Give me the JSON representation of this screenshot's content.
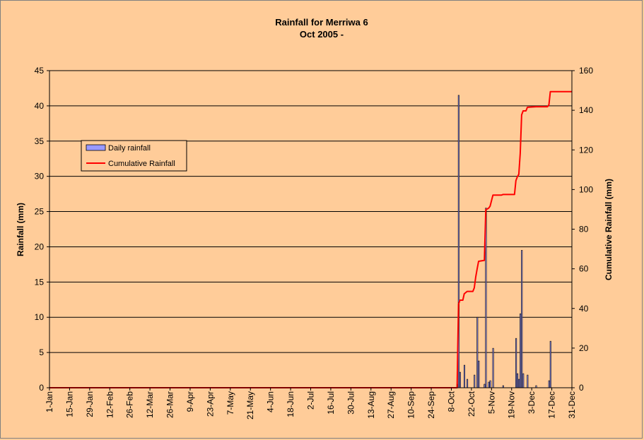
{
  "chart_data": {
    "type": "bar+line",
    "title": "Rainfall for Merriwa 6",
    "subtitle": "Oct 2005 -",
    "ylabel": "Rainfall (mm)",
    "y2label": "Cumulative Rainfall (mm)",
    "ylim": [
      0,
      45
    ],
    "y2lim": [
      0,
      160
    ],
    "yticks": [
      0,
      5,
      10,
      15,
      20,
      25,
      30,
      35,
      40,
      45
    ],
    "y2ticks": [
      0,
      20,
      40,
      60,
      80,
      100,
      120,
      140,
      160
    ],
    "x_date_range": [
      "1-Jan",
      "31-Dec"
    ],
    "xtick_labels": [
      "1-Jan",
      "15-Jan",
      "29-Jan",
      "12-Feb",
      "26-Feb",
      "12-Mar",
      "26-Mar",
      "9-Apr",
      "23-Apr",
      "7-May",
      "21-May",
      "4-Jun",
      "18-Jun",
      "2-Jul",
      "16-Jul",
      "30-Jul",
      "13-Aug",
      "27-Aug",
      "10-Sep",
      "24-Sep",
      "8-Oct",
      "22-Oct",
      "5-Nov",
      "19-Nov",
      "3-Dec",
      "17-Dec",
      "31-Dec"
    ],
    "grid": true,
    "legend_position": "left, upper-middle",
    "series": [
      {
        "name": "Daily rainfall",
        "type": "bar",
        "color": "#9999FF",
        "points": [
          [
            "12-Oct",
            0.5
          ],
          [
            "13-Oct",
            41.5
          ],
          [
            "14-Oct",
            2.2
          ],
          [
            "17-Oct",
            3.2
          ],
          [
            "19-Oct",
            1.2
          ],
          [
            "24-Oct",
            1.8
          ],
          [
            "26-Oct",
            10
          ],
          [
            "27-Oct",
            3.8
          ],
          [
            "31-Oct",
            0.5
          ],
          [
            "1-Nov",
            25.5
          ],
          [
            "3-Nov",
            0.8
          ],
          [
            "4-Nov",
            1
          ],
          [
            "6-Nov",
            5.6
          ],
          [
            "13-Nov",
            0.3
          ],
          [
            "22-Nov",
            7
          ],
          [
            "23-Nov",
            2
          ],
          [
            "24-Nov",
            1.2
          ],
          [
            "25-Nov",
            10.5
          ],
          [
            "26-Nov",
            19.5
          ],
          [
            "27-Nov",
            2
          ],
          [
            "30-Nov",
            1.8
          ],
          [
            "6-Dec",
            0.3
          ],
          [
            "15-Dec",
            1
          ],
          [
            "16-Dec",
            6.6
          ]
        ]
      },
      {
        "name": "Cumulative Rainfall",
        "type": "line",
        "color": "#FF0000",
        "axis": "right",
        "points": [
          [
            "1-Jan",
            0
          ],
          [
            "12-Oct",
            0
          ],
          [
            "12-Oct",
            0.5
          ],
          [
            "13-Oct",
            42
          ],
          [
            "14-Oct",
            44.2
          ],
          [
            "16-Oct",
            44.2
          ],
          [
            "17-Oct",
            47.4
          ],
          [
            "19-Oct",
            48.6
          ],
          [
            "23-Oct",
            48.6
          ],
          [
            "24-Oct",
            50.4
          ],
          [
            "25-Oct",
            56
          ],
          [
            "26-Oct",
            60
          ],
          [
            "27-Oct",
            63.8
          ],
          [
            "31-Oct",
            64.3
          ],
          [
            "1-Nov",
            89.8
          ],
          [
            "3-Nov",
            90.6
          ],
          [
            "4-Nov",
            91.6
          ],
          [
            "6-Nov",
            97.2
          ],
          [
            "12-Nov",
            97.2
          ],
          [
            "13-Nov",
            97.5
          ],
          [
            "21-Nov",
            97.5
          ],
          [
            "22-Nov",
            104.5
          ],
          [
            "23-Nov",
            106.5
          ],
          [
            "24-Nov",
            107.7
          ],
          [
            "25-Nov",
            118.2
          ],
          [
            "26-Nov",
            137.7
          ],
          [
            "27-Nov",
            139.7
          ],
          [
            "29-Nov",
            139.7
          ],
          [
            "30-Nov",
            141.5
          ],
          [
            "6-Dec",
            141.8
          ],
          [
            "14-Dec",
            141.8
          ],
          [
            "15-Dec",
            142.8
          ],
          [
            "16-Dec",
            149.4
          ],
          [
            "31-Dec",
            149.4
          ]
        ]
      }
    ]
  }
}
